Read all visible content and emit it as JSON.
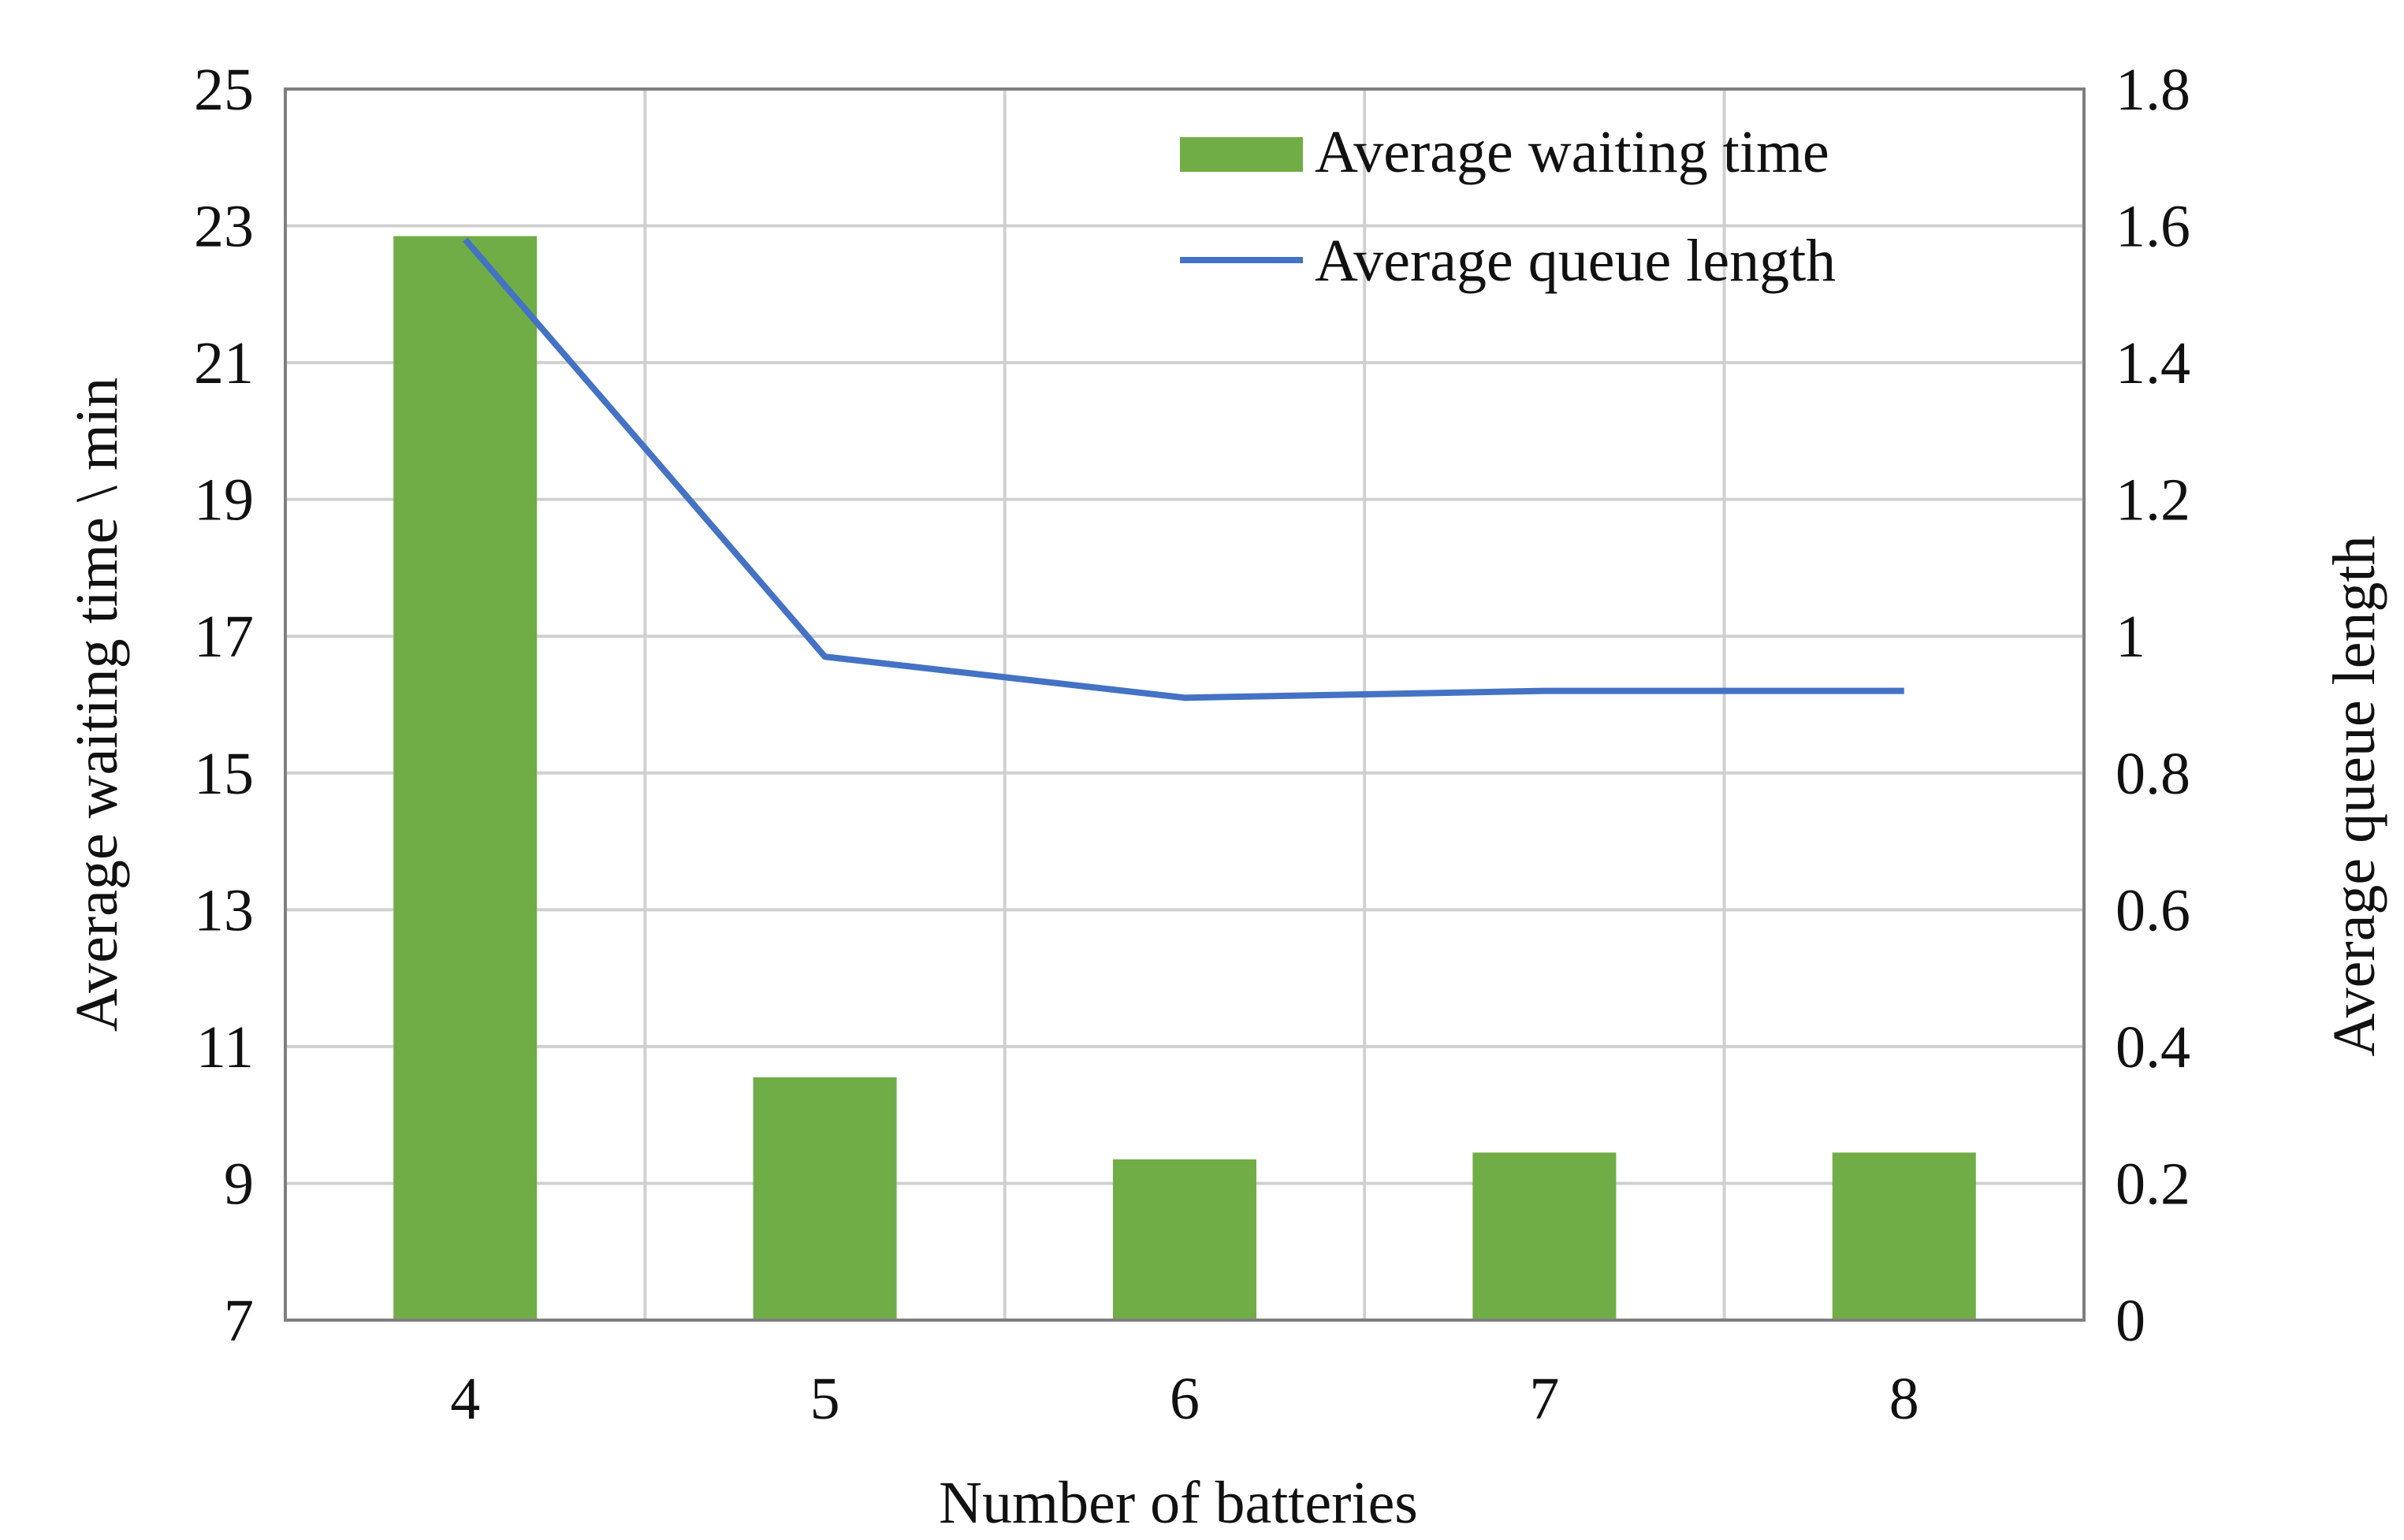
{
  "chart_data": {
    "type": "bar",
    "title": "",
    "categories": [
      "4",
      "5",
      "6",
      "7",
      "8"
    ],
    "xlabel": "Number of batteries",
    "ylabel": "Average waiting time \\ min",
    "y2label": "Average queue length",
    "ylim": [
      7,
      25
    ],
    "y2lim": [
      0,
      1.8
    ],
    "yticks": [
      "7",
      "9",
      "11",
      "13",
      "15",
      "17",
      "19",
      "21",
      "23",
      "25"
    ],
    "y2ticks": [
      "0",
      "0.2",
      "0.4",
      "0.6",
      "0.8",
      "1",
      "1.2",
      "1.4",
      "1.6",
      "1.8"
    ],
    "grid": true,
    "legend_position": "top-right",
    "series": [
      {
        "name": "Average waiting time",
        "kind": "bar",
        "axis": "left",
        "color": "#70ad47",
        "values": [
          22.85,
          10.55,
          9.35,
          9.45,
          9.45
        ]
      },
      {
        "name": "Average queue length",
        "kind": "line",
        "axis": "right",
        "color": "#4472c4",
        "values": [
          1.58,
          0.97,
          0.91,
          0.92,
          0.92
        ]
      }
    ]
  }
}
